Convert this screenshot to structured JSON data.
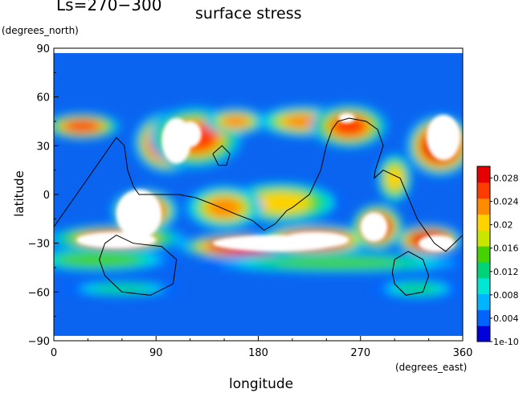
{
  "chart_data": {
    "type": "heatmap",
    "title": "Ls=270−300",
    "subtitle": "surface stress",
    "xlabel": "longitude",
    "ylabel": "latitude",
    "x_unit": "(degrees_east)",
    "y_unit": "(degrees_north)",
    "xlim": [
      0,
      360
    ],
    "ylim": [
      -90,
      90
    ],
    "x_ticks": [
      "0",
      "90",
      "180",
      "270",
      "360"
    ],
    "y_ticks": [
      "90",
      "60",
      "30",
      "0",
      "−30",
      "−60",
      "−90"
    ],
    "colorbar": {
      "labels": [
        "1e-10",
        "0.004",
        "0.008",
        "0.012",
        "0.016",
        "0.02",
        "0.024",
        "0.028"
      ],
      "values": [
        0,
        0.004,
        0.008,
        0.012,
        0.016,
        0.02,
        0.024,
        0.028
      ],
      "max": 0.03,
      "colors": [
        "#0000d8",
        "#0064ff",
        "#00b4ff",
        "#00e6d2",
        "#00d278",
        "#46d200",
        "#c8e600",
        "#ffd200",
        "#ff8c00",
        "#ff3c00",
        "#e60000"
      ]
    },
    "note_saturated": "white areas exceed colorbar maximum",
    "data_extent": {
      "lat": [
        -87,
        87
      ]
    },
    "hotspots": [
      {
        "lon": 25,
        "lat": 42,
        "sx": 25,
        "sy": 6,
        "v": 0.026
      },
      {
        "lon": 80,
        "lat": -10,
        "sx": 22,
        "sy": 10,
        "v": 0.03
      },
      {
        "lon": 55,
        "lat": -27,
        "sx": 45,
        "sy": 6,
        "v": 0.026
      },
      {
        "lon": 100,
        "lat": 32,
        "sx": 22,
        "sy": 14,
        "v": 0.032
      },
      {
        "lon": 125,
        "lat": 35,
        "sx": 30,
        "sy": 14,
        "v": 0.026
      },
      {
        "lon": 160,
        "lat": 45,
        "sx": 20,
        "sy": 6,
        "v": 0.022
      },
      {
        "lon": 220,
        "lat": 45,
        "sx": 30,
        "sy": 7,
        "v": 0.024
      },
      {
        "lon": 170,
        "lat": -32,
        "sx": 45,
        "sy": 6,
        "v": 0.032
      },
      {
        "lon": 230,
        "lat": -28,
        "sx": 40,
        "sy": 7,
        "v": 0.03
      },
      {
        "lon": 285,
        "lat": -20,
        "sx": 16,
        "sy": 10,
        "v": 0.033
      },
      {
        "lon": 330,
        "lat": -28,
        "sx": 22,
        "sy": 7,
        "v": 0.032
      },
      {
        "lon": 340,
        "lat": 30,
        "sx": 22,
        "sy": 14,
        "v": 0.032
      },
      {
        "lon": 260,
        "lat": 42,
        "sx": 25,
        "sy": 10,
        "v": 0.026
      },
      {
        "lon": 300,
        "lat": 10,
        "sx": 12,
        "sy": 12,
        "v": 0.02
      },
      {
        "lon": 200,
        "lat": -5,
        "sx": 40,
        "sy": 10,
        "v": 0.02
      },
      {
        "lon": 150,
        "lat": -8,
        "sx": 25,
        "sy": 10,
        "v": 0.024
      },
      {
        "lon": 40,
        "lat": -40,
        "sx": 50,
        "sy": 6,
        "v": 0.016
      },
      {
        "lon": 250,
        "lat": -42,
        "sx": 90,
        "sy": 5,
        "v": 0.014
      },
      {
        "lon": 60,
        "lat": -58,
        "sx": 40,
        "sy": 4,
        "v": 0.012
      },
      {
        "lon": 320,
        "lat": -58,
        "sx": 30,
        "sy": 5,
        "v": 0.012
      }
    ],
    "saturated_regions": [
      {
        "lon": 75,
        "lat": -12,
        "rx": 20,
        "ry": 15
      },
      {
        "lon": 55,
        "lat": -28,
        "rx": 35,
        "ry": 5
      },
      {
        "lon": 108,
        "lat": 33,
        "rx": 13,
        "ry": 14
      },
      {
        "lon": 195,
        "lat": -30,
        "rx": 55,
        "ry": 5
      },
      {
        "lon": 230,
        "lat": -28,
        "rx": 30,
        "ry": 5
      },
      {
        "lon": 282,
        "lat": -20,
        "rx": 12,
        "ry": 9
      },
      {
        "lon": 337,
        "lat": -30,
        "rx": 16,
        "ry": 5
      },
      {
        "lon": 343,
        "lat": 35,
        "rx": 15,
        "ry": 14
      },
      {
        "lon": 120,
        "lat": 37,
        "rx": 10,
        "ry": 8
      },
      {
        "lon": 258,
        "lat": 47,
        "rx": 7,
        "ry": 3
      }
    ],
    "contour_lines": [
      [
        [
          0,
          -20
        ],
        [
          15,
          -5
        ],
        [
          30,
          10
        ],
        [
          40,
          20
        ],
        [
          50,
          30
        ],
        [
          55,
          35
        ],
        [
          62,
          30
        ],
        [
          65,
          15
        ],
        [
          70,
          5
        ],
        [
          75,
          0
        ],
        [
          90,
          0
        ],
        [
          110,
          0
        ],
        [
          125,
          -2
        ],
        [
          140,
          -6
        ],
        [
          160,
          -12
        ],
        [
          175,
          -16
        ],
        [
          185,
          -22
        ],
        [
          195,
          -18
        ],
        [
          205,
          -10
        ],
        [
          210,
          -8
        ],
        [
          225,
          0
        ],
        [
          235,
          15
        ],
        [
          240,
          30
        ],
        [
          245,
          40
        ],
        [
          250,
          45
        ],
        [
          260,
          47
        ],
        [
          275,
          45
        ],
        [
          285,
          40
        ],
        [
          290,
          30
        ],
        [
          283,
          15
        ],
        [
          282,
          10
        ],
        [
          290,
          15
        ],
        [
          305,
          10
        ],
        [
          320,
          -15
        ],
        [
          335,
          -30
        ],
        [
          345,
          -35
        ],
        [
          360,
          -25
        ]
      ],
      [
        [
          45,
          -30
        ],
        [
          55,
          -25
        ],
        [
          70,
          -30
        ],
        [
          95,
          -32
        ],
        [
          108,
          -40
        ],
        [
          105,
          -55
        ],
        [
          85,
          -62
        ],
        [
          60,
          -60
        ],
        [
          45,
          -50
        ],
        [
          40,
          -40
        ],
        [
          45,
          -30
        ]
      ],
      [
        [
          300,
          -40
        ],
        [
          312,
          -35
        ],
        [
          325,
          -40
        ],
        [
          330,
          -50
        ],
        [
          325,
          -60
        ],
        [
          310,
          -62
        ],
        [
          300,
          -55
        ],
        [
          298,
          -48
        ],
        [
          300,
          -40
        ]
      ],
      [
        [
          140,
          25
        ],
        [
          148,
          30
        ],
        [
          155,
          25
        ],
        [
          152,
          18
        ],
        [
          145,
          18
        ],
        [
          140,
          25
        ]
      ]
    ]
  }
}
